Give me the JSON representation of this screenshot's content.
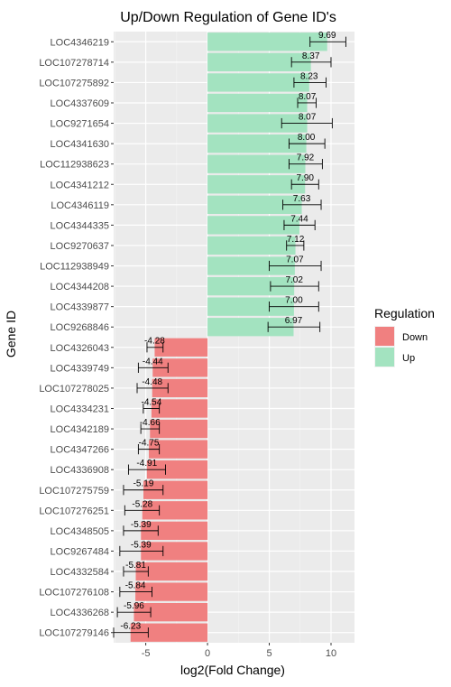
{
  "chart_data": {
    "type": "bar",
    "orientation": "horizontal",
    "title": "Up/Down Regulation of Gene ID's",
    "xlabel": "log2(Fold Change)",
    "ylabel": "Gene ID",
    "xlim": [
      -7.6,
      11.9
    ],
    "x_ticks": [
      -5,
      0,
      5,
      10
    ],
    "grid": true,
    "legend": {
      "title": "Regulation",
      "position": "right",
      "entries": [
        {
          "name": "Down",
          "color": "#f08080"
        },
        {
          "name": "Up",
          "color": "#a3e3c0"
        }
      ]
    },
    "bars": [
      {
        "gene": "LOC4346219",
        "value": 9.69,
        "label": "9.69",
        "err_low": 8.3,
        "err_high": 11.2,
        "group": "Up"
      },
      {
        "gene": "LOC107278714",
        "value": 8.37,
        "label": "8.37",
        "err_low": 6.8,
        "err_high": 10.0,
        "group": "Up"
      },
      {
        "gene": "LOC107275892",
        "value": 8.23,
        "label": "8.23",
        "err_low": 7.0,
        "err_high": 9.6,
        "group": "Up"
      },
      {
        "gene": "LOC4337609",
        "value": 8.07,
        "label": "8.07",
        "err_low": 7.3,
        "err_high": 8.8,
        "group": "Up"
      },
      {
        "gene": "LOC9271654",
        "value": 8.07,
        "label": "8.07",
        "err_low": 6.0,
        "err_high": 10.1,
        "group": "Up"
      },
      {
        "gene": "LOC4341630",
        "value": 8.0,
        "label": "8.00",
        "err_low": 6.6,
        "err_high": 9.5,
        "group": "Up"
      },
      {
        "gene": "LOC112938623",
        "value": 7.92,
        "label": "7.92",
        "err_low": 6.6,
        "err_high": 9.3,
        "group": "Up"
      },
      {
        "gene": "LOC4341212",
        "value": 7.9,
        "label": "7.90",
        "err_low": 6.8,
        "err_high": 9.0,
        "group": "Up"
      },
      {
        "gene": "LOC4346119",
        "value": 7.63,
        "label": "7.63",
        "err_low": 6.1,
        "err_high": 9.2,
        "group": "Up"
      },
      {
        "gene": "LOC4344335",
        "value": 7.44,
        "label": "7.44",
        "err_low": 6.2,
        "err_high": 8.7,
        "group": "Up"
      },
      {
        "gene": "LOC9270637",
        "value": 7.12,
        "label": "7.12",
        "err_low": 6.4,
        "err_high": 7.8,
        "group": "Up"
      },
      {
        "gene": "LOC112938949",
        "value": 7.07,
        "label": "7.07",
        "err_low": 5.0,
        "err_high": 9.2,
        "group": "Up"
      },
      {
        "gene": "LOC4344208",
        "value": 7.02,
        "label": "7.02",
        "err_low": 5.1,
        "err_high": 9.0,
        "group": "Up"
      },
      {
        "gene": "LOC4339877",
        "value": 7.0,
        "label": "7.00",
        "err_low": 5.0,
        "err_high": 9.0,
        "group": "Up"
      },
      {
        "gene": "LOC9268846",
        "value": 6.97,
        "label": "6.97",
        "err_low": 4.9,
        "err_high": 9.1,
        "group": "Up"
      },
      {
        "gene": "LOC4326043",
        "value": -4.28,
        "label": "-4.28",
        "err_low": -4.9,
        "err_high": -3.6,
        "group": "Down"
      },
      {
        "gene": "LOC4339749",
        "value": -4.44,
        "label": "-4.44",
        "err_low": -5.6,
        "err_high": -3.2,
        "group": "Down"
      },
      {
        "gene": "LOC107278025",
        "value": -4.48,
        "label": "-4.48",
        "err_low": -5.7,
        "err_high": -3.2,
        "group": "Down"
      },
      {
        "gene": "LOC4334231",
        "value": -4.54,
        "label": "-4.54",
        "err_low": -5.2,
        "err_high": -3.9,
        "group": "Down"
      },
      {
        "gene": "LOC4342189",
        "value": -4.66,
        "label": "-4.66",
        "err_low": -5.4,
        "err_high": -3.9,
        "group": "Down"
      },
      {
        "gene": "LOC4347266",
        "value": -4.75,
        "label": "-4.75",
        "err_low": -5.6,
        "err_high": -3.9,
        "group": "Down"
      },
      {
        "gene": "LOC4336908",
        "value": -4.91,
        "label": "-4.91",
        "err_low": -6.4,
        "err_high": -3.4,
        "group": "Down"
      },
      {
        "gene": "LOC107275759",
        "value": -5.19,
        "label": "-5.19",
        "err_low": -6.8,
        "err_high": -3.6,
        "group": "Down"
      },
      {
        "gene": "LOC107276251",
        "value": -5.28,
        "label": "-5.28",
        "err_low": -6.7,
        "err_high": -3.9,
        "group": "Down"
      },
      {
        "gene": "LOC4348505",
        "value": -5.39,
        "label": "-5.39",
        "err_low": -6.8,
        "err_high": -4.0,
        "group": "Down"
      },
      {
        "gene": "LOC9267484",
        "value": -5.39,
        "label": "-5.39",
        "err_low": -7.1,
        "err_high": -3.6,
        "group": "Down"
      },
      {
        "gene": "LOC4332584",
        "value": -5.81,
        "label": "-5.81",
        "err_low": -6.8,
        "err_high": -4.8,
        "group": "Down"
      },
      {
        "gene": "LOC107276108",
        "value": -5.84,
        "label": "-5.84",
        "err_low": -7.1,
        "err_high": -4.5,
        "group": "Down"
      },
      {
        "gene": "LOC4336268",
        "value": -5.96,
        "label": "-5.96",
        "err_low": -7.3,
        "err_high": -4.6,
        "group": "Down"
      },
      {
        "gene": "LOC107279146",
        "value": -6.23,
        "label": "-6.23",
        "err_low": -7.6,
        "err_high": -4.8,
        "group": "Down"
      }
    ]
  }
}
